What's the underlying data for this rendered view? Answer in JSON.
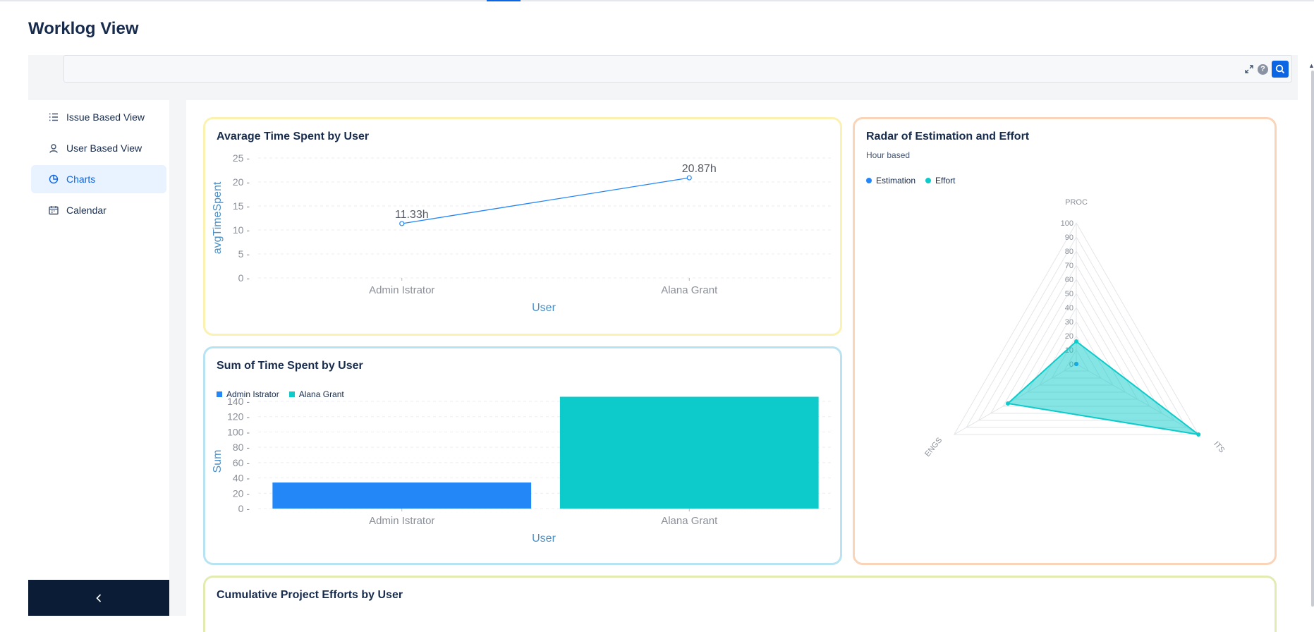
{
  "page": {
    "title": "Worklog View"
  },
  "search": {
    "value": "",
    "placeholder": "",
    "help_label": "?"
  },
  "sidebar": {
    "items": [
      {
        "label": "Issue Based View",
        "icon": "list-icon",
        "active": false
      },
      {
        "label": "User Based View",
        "icon": "user-icon",
        "active": false
      },
      {
        "label": "Charts",
        "icon": "pie-chart-icon",
        "active": true
      },
      {
        "label": "Calendar",
        "icon": "calendar-icon",
        "active": false
      }
    ],
    "collapse_glyph": "<"
  },
  "colors": {
    "accent": "#0c66e4",
    "blue_series": "#2387f7",
    "teal_series": "#0ccbca",
    "card_yellow_border": "#fbf1b0",
    "card_blue_border": "#b8e3f2",
    "card_orange_border": "#f9d4b8",
    "card_green_border": "#e2ecb2"
  },
  "cards": {
    "avg": {
      "title": "Avarage Time Spent by User"
    },
    "sum": {
      "title": "Sum of Time Spent by User"
    },
    "radar": {
      "title": "Radar of Estimation and Effort",
      "subtitle": "Hour based"
    },
    "cumulative": {
      "title": "Cumulative Project Efforts by User"
    }
  },
  "chart_data": [
    {
      "type": "line",
      "title": "Avarage Time Spent by User",
      "xlabel": "User",
      "ylabel": "avgTimeSpent",
      "categories": [
        "Admin Istrator",
        "Alana Grant"
      ],
      "values": [
        11.33,
        20.87
      ],
      "data_labels": [
        "11.33h",
        "20.87h"
      ],
      "ylim": [
        0,
        25
      ],
      "yticks": [
        0,
        5,
        10,
        15,
        20,
        25
      ],
      "grid": true
    },
    {
      "type": "bar",
      "title": "Sum of Time Spent by User",
      "xlabel": "User",
      "ylabel": "Sum",
      "categories": [
        "Admin Istrator",
        "Alana Grant"
      ],
      "series": [
        {
          "name": "Admin Istrator",
          "values": [
            34,
            null
          ]
        },
        {
          "name": "Alana Grant",
          "values": [
            null,
            146
          ]
        }
      ],
      "ylim": [
        0,
        140
      ],
      "yticks": [
        0,
        20,
        40,
        60,
        80,
        100,
        120,
        140
      ],
      "legend": "top-left",
      "grid": true
    },
    {
      "type": "radar",
      "title": "Radar of Estimation and Effort",
      "subtitle": "Hour based",
      "axes": [
        "PROC",
        "ITS",
        "ENGS"
      ],
      "rlim": [
        0,
        100
      ],
      "rticks": [
        0,
        10,
        20,
        30,
        40,
        50,
        60,
        70,
        80,
        90,
        100
      ],
      "series": [
        {
          "name": "Estimation",
          "values": [
            0,
            0,
            0
          ]
        },
        {
          "name": "Effort",
          "values": [
            16,
            100,
            56
          ]
        }
      ],
      "legend": "top-left"
    }
  ]
}
